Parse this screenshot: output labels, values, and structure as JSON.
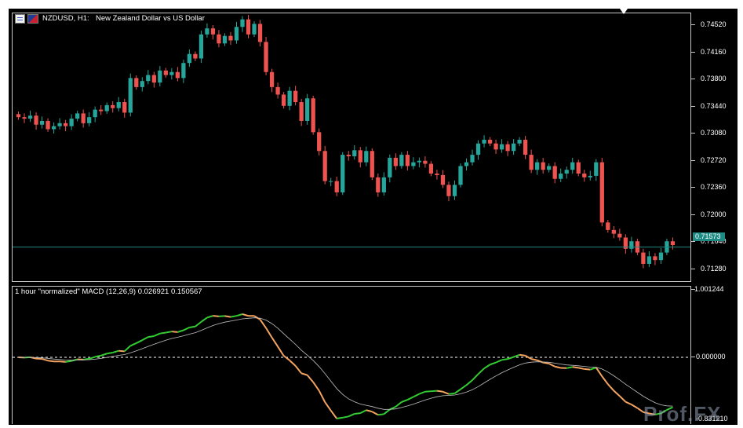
{
  "chart_header": {
    "symbol_text": "NZDUSD, H1:",
    "description": "New Zealand Dollar vs US Dollar"
  },
  "price_scale": {
    "labels": [
      "0.74520",
      "0.74160",
      "0.73800",
      "0.73440",
      "0.73080",
      "0.72720",
      "0.72360",
      "0.72000",
      "0.71640",
      "0.71280"
    ],
    "current_price": "0.71573",
    "current_price_color": "#1d8a84"
  },
  "indicator": {
    "title": "1 hour \"normalized\" MACD (12,26,9) 0.026921 0.150567",
    "scale_labels": [
      "1.001244",
      "0.000000",
      "-0.831210"
    ],
    "rising_color": "#32cd32",
    "falling_color": "#f4a460",
    "signal_color": "#c0c0c0"
  },
  "icons": {
    "indicators_list": "indicator-list-icon",
    "symbol_flags": "currency-flags-icon",
    "chart_shift": "chart-shift-marker-icon"
  },
  "watermark": "Prof.FX",
  "colors": {
    "background": "#000000",
    "bull_candle": "#26a69a",
    "bear_candle": "#ef5350",
    "grid_line": "#c8c8c8"
  },
  "chart_data": {
    "type": "candlestick",
    "symbol": "NZDUSD",
    "timeframe": "H1",
    "ylim": [
      0.7112,
      0.7468
    ],
    "close": [
      0.733,
      0.7328,
      0.7332,
      0.732,
      0.7325,
      0.7314,
      0.7318,
      0.7322,
      0.7318,
      0.7328,
      0.7335,
      0.7322,
      0.733,
      0.734,
      0.7338,
      0.7346,
      0.7342,
      0.735,
      0.7336,
      0.7382,
      0.737,
      0.7378,
      0.7386,
      0.7376,
      0.7392,
      0.7386,
      0.739,
      0.7382,
      0.7402,
      0.7414,
      0.7408,
      0.744,
      0.7448,
      0.744,
      0.7428,
      0.7438,
      0.7432,
      0.745,
      0.746,
      0.744,
      0.7454,
      0.743,
      0.739,
      0.737,
      0.736,
      0.7345,
      0.7365,
      0.735,
      0.7325,
      0.7355,
      0.731,
      0.7285,
      0.7245,
      0.7245,
      0.723,
      0.728,
      0.7278,
      0.7286,
      0.727,
      0.7285,
      0.725,
      0.723,
      0.725,
      0.7276,
      0.7265,
      0.728,
      0.7265,
      0.727,
      0.7272,
      0.7268,
      0.7255,
      0.7253,
      0.724,
      0.7225,
      0.724,
      0.7265,
      0.727,
      0.728,
      0.7295,
      0.73,
      0.7295,
      0.7287,
      0.7294,
      0.7285,
      0.7295,
      0.73,
      0.728,
      0.726,
      0.727,
      0.726,
      0.7265,
      0.7248,
      0.7255,
      0.726,
      0.727,
      0.7255,
      0.725,
      0.7252,
      0.727,
      0.719,
      0.718,
      0.7175,
      0.717,
      0.7155,
      0.7165,
      0.715,
      0.7135,
      0.7145,
      0.714,
      0.715,
      0.7165,
      0.716
    ]
  }
}
